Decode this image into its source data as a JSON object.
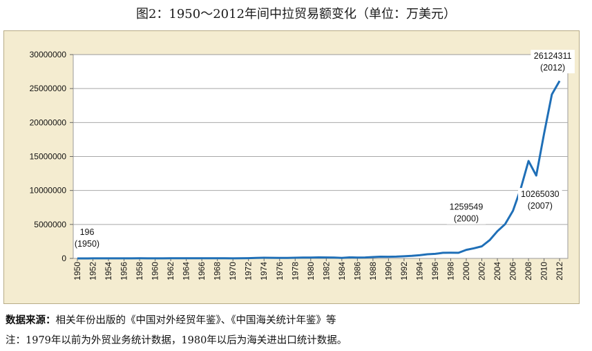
{
  "title": "图2：1950～2012年间中拉贸易额变化（单位：万美元）",
  "source_label": "数据来源：",
  "source_text": "相关年份出版的《中国对外经贸年鉴》、《中国海关统计年鉴》等",
  "note_text": "注：1979年以前为外贸业务统计数据，1980年以后为海关进出口统计数据。",
  "chart_data": {
    "type": "line",
    "title": "",
    "xlabel": "",
    "ylabel": "",
    "ylim": [
      0,
      30000000
    ],
    "yticks": [
      0,
      5000000,
      10000000,
      15000000,
      20000000,
      25000000,
      30000000
    ],
    "ytick_labels": [
      "0",
      "5000000",
      "10000000",
      "15000000",
      "20000000",
      "25000000",
      "30000000"
    ],
    "xtick_labels": [
      "1950",
      "1952",
      "1954",
      "1956",
      "1958",
      "1960",
      "1962",
      "1964",
      "1966",
      "1968",
      "1970",
      "1972",
      "1974",
      "1976",
      "1978",
      "1980",
      "1982",
      "1984",
      "1986",
      "1988",
      "1990",
      "1992",
      "1994",
      "1996",
      "1998",
      "2000",
      "2002",
      "2004",
      "2006",
      "2008",
      "2010",
      "2012"
    ],
    "grid": "horizontal",
    "line_color": "#1f6fb7",
    "series": [
      {
        "x": [
          1950,
          1951,
          1952,
          1953,
          1954,
          1955,
          1956,
          1957,
          1958,
          1959,
          1960,
          1961,
          1962,
          1963,
          1964,
          1965,
          1966,
          1967,
          1968,
          1969,
          1970,
          1971,
          1972,
          1973,
          1974,
          1975,
          1976,
          1977,
          1978,
          1979,
          1980,
          1981,
          1982,
          1983,
          1984,
          1985,
          1986,
          1987,
          1988,
          1989,
          1990,
          1991,
          1992,
          1993,
          1994,
          1995,
          1996,
          1997,
          1998,
          1999,
          2000,
          2001,
          2002,
          2003,
          2004,
          2005,
          2006,
          2007,
          2008,
          2009,
          2010,
          2011,
          2012
        ],
        "y": [
          196,
          5000,
          10000,
          8000,
          6000,
          9000,
          15000,
          12000,
          18000,
          15000,
          12000,
          15000,
          20000,
          25000,
          30000,
          35000,
          25000,
          20000,
          20000,
          20000,
          15000,
          25000,
          40000,
          80000,
          100000,
          90000,
          70000,
          80000,
          100000,
          120000,
          130000,
          150000,
          140000,
          120000,
          70000,
          150000,
          120000,
          140000,
          200000,
          250000,
          240000,
          260000,
          320000,
          380000,
          470000,
          610000,
          670000,
          820000,
          830000,
          820000,
          1259549,
          1490000,
          1780000,
          2680000,
          4000000,
          5050000,
          7020000,
          10265030,
          14340000,
          12190000,
          18360000,
          24140000,
          26124311
        ]
      }
    ],
    "annotations": [
      {
        "value": "196",
        "sub": "(1950)",
        "x": 1950,
        "y": 196
      },
      {
        "value": "1259549",
        "sub": "(2000)",
        "x": 2000,
        "y": 1259549
      },
      {
        "value": "10265030",
        "sub": "(2007)",
        "x": 2007,
        "y": 10265030
      },
      {
        "value": "26124311",
        "sub": "(2012)",
        "x": 2012,
        "y": 26124311
      }
    ]
  }
}
